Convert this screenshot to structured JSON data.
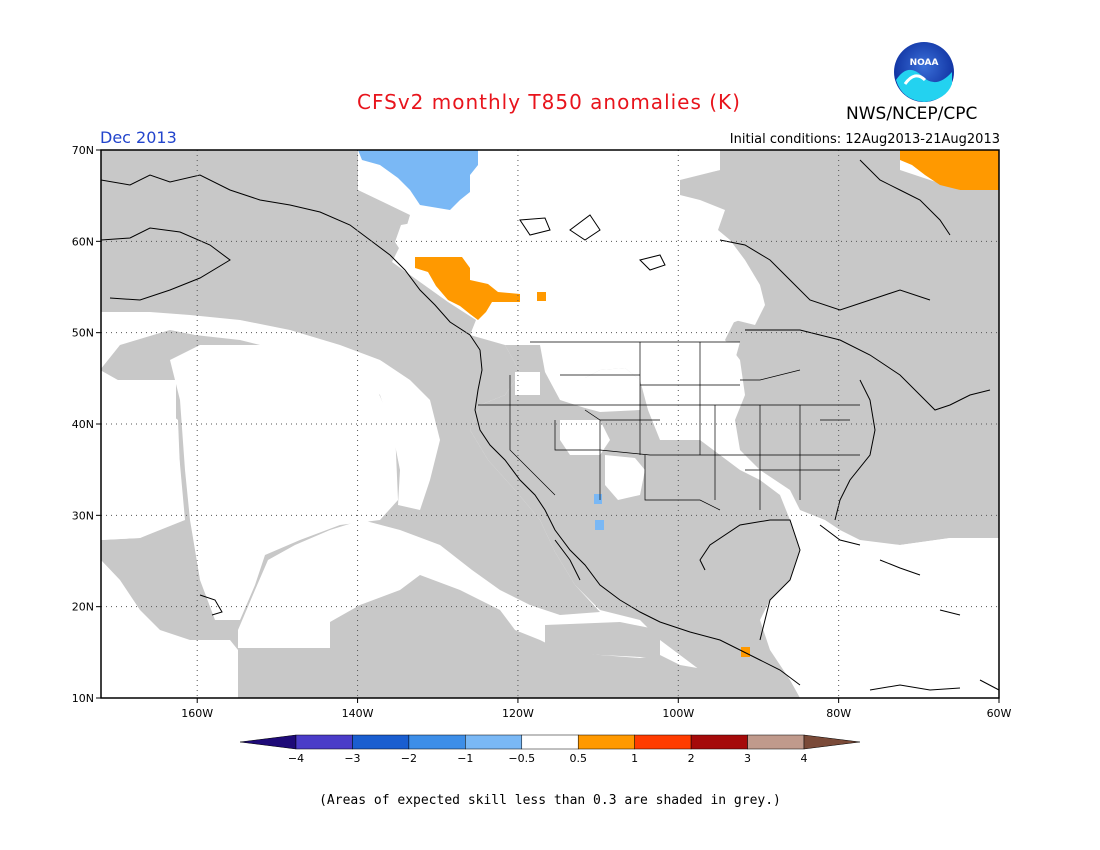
{
  "header": {
    "title": "CFSv2 monthly T850 anomalies (K)",
    "agency": "NWS/NCEP/CPC",
    "logo_text": "NOAA",
    "valid_month": "Dec 2013",
    "initial_conditions": "Initial conditions: 12Aug2013-21Aug2013"
  },
  "map": {
    "lon_range": [
      -172,
      -60
    ],
    "lat_range": [
      10,
      70
    ],
    "lat_ticks": [
      {
        "value": 70,
        "label": "70N"
      },
      {
        "value": 60,
        "label": "60N"
      },
      {
        "value": 50,
        "label": "50N"
      },
      {
        "value": 40,
        "label": "40N"
      },
      {
        "value": 30,
        "label": "30N"
      },
      {
        "value": 20,
        "label": "20N"
      },
      {
        "value": 10,
        "label": "10N"
      }
    ],
    "lon_ticks": [
      {
        "value": -160,
        "label": "160W"
      },
      {
        "value": -140,
        "label": "140W"
      },
      {
        "value": -120,
        "label": "120W"
      },
      {
        "value": -100,
        "label": "100W"
      },
      {
        "value": -80,
        "label": "80W"
      },
      {
        "value": -60,
        "label": "60W"
      }
    ],
    "grid": "dotted",
    "low_skill_color": "#c8c8c8",
    "anomaly_regions": [
      {
        "category": "0.5 to 1",
        "color": "#ff9900",
        "area": "British Columbia / Alberta border"
      },
      {
        "category": "0.5 to 1",
        "color": "#ff9900",
        "area": "Greenland / Baffin Bay"
      },
      {
        "category": "0.5 to 1",
        "color": "#ff9900",
        "area": "Guatemala"
      },
      {
        "category": "-1 to -0.5",
        "color": "#7ab8f5",
        "area": "Northwest Territories / Yukon"
      },
      {
        "category": "-1 to -0.5",
        "color": "#7ab8f5",
        "area": "Arizona / Sonora"
      }
    ]
  },
  "colorbar": {
    "colors": [
      "#1e0a78",
      "#4a3cc8",
      "#1a5ed0",
      "#3d8ee8",
      "#7ab8f5",
      "#ffffff",
      "#ff9900",
      "#ff3c00",
      "#a50a0a",
      "#c09a8c",
      "#7a4a38"
    ],
    "labels": [
      "−4",
      "−3",
      "−2",
      "−1",
      "−0.5",
      "0.5",
      "1",
      "2",
      "3",
      "4"
    ]
  },
  "footnote": "(Areas of expected skill less than 0.3 are shaded in grey.)"
}
